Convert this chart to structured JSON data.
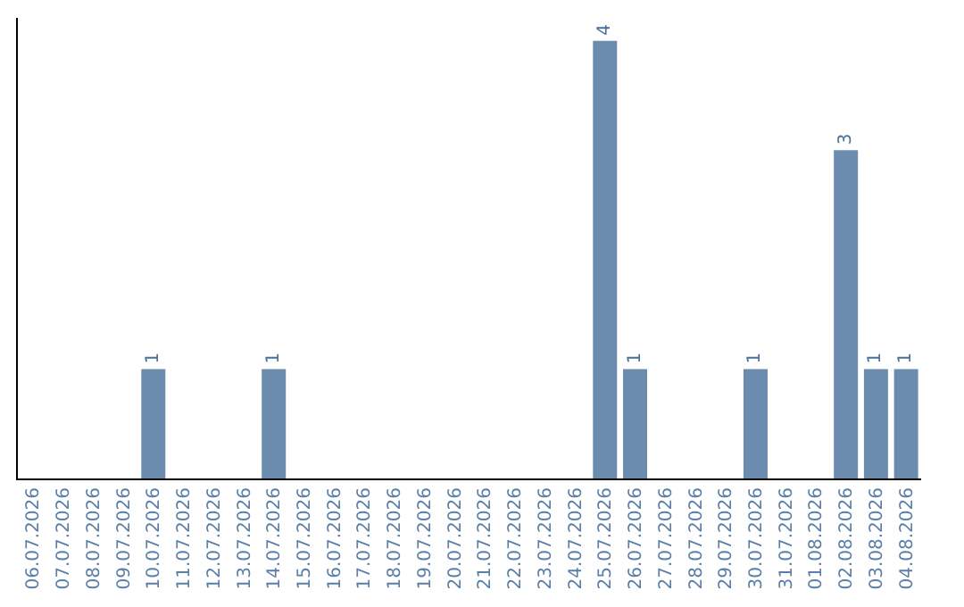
{
  "chart_data": {
    "type": "bar",
    "categories": [
      "06.07.2026",
      "07.07.2026",
      "08.07.2026",
      "09.07.2026",
      "10.07.2026",
      "11.07.2026",
      "12.07.2026",
      "13.07.2026",
      "14.07.2026",
      "15.07.2026",
      "16.07.2026",
      "17.07.2026",
      "18.07.2026",
      "19.07.2026",
      "20.07.2026",
      "21.07.2026",
      "22.07.2026",
      "23.07.2026",
      "24.07.2026",
      "25.07.2026",
      "26.07.2026",
      "27.07.2026",
      "28.07.2026",
      "29.07.2026",
      "30.07.2026",
      "31.07.2026",
      "01.08.2026",
      "02.08.2026",
      "03.08.2026",
      "04.08.2026"
    ],
    "values": [
      0,
      0,
      0,
      0,
      1,
      0,
      0,
      0,
      1,
      0,
      0,
      0,
      0,
      0,
      0,
      0,
      0,
      0,
      0,
      4,
      1,
      0,
      0,
      0,
      1,
      0,
      0,
      3,
      1,
      1
    ],
    "value_labels": [
      null,
      null,
      null,
      null,
      "1",
      null,
      null,
      null,
      "1",
      null,
      null,
      null,
      null,
      null,
      null,
      null,
      null,
      null,
      null,
      "4",
      "1",
      null,
      null,
      null,
      "1",
      null,
      null,
      "3",
      "1",
      "1"
    ],
    "color": "#6b8cae",
    "grid": false,
    "tick_labels": "x"
  }
}
